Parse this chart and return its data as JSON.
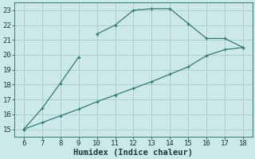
{
  "line1_x": [
    6,
    7,
    8,
    9
  ],
  "line1_y": [
    15,
    16.4,
    18.1,
    19.85
  ],
  "line2_x": [
    10,
    11,
    12,
    13,
    14,
    15,
    16,
    17,
    18
  ],
  "line2_y": [
    21.4,
    22.0,
    23.0,
    23.1,
    23.1,
    22.1,
    21.1,
    21.1,
    20.5
  ],
  "line3_x": [
    6,
    7,
    8,
    9,
    10,
    11,
    12,
    13,
    14,
    15,
    16,
    17,
    18
  ],
  "line3_y": [
    15.0,
    15.45,
    15.9,
    16.35,
    16.85,
    17.3,
    17.75,
    18.2,
    18.7,
    19.2,
    19.95,
    20.35,
    20.5
  ],
  "line_color": "#2d7d72",
  "bg_color": "#cde8e8",
  "grid_color": "#aacfcf",
  "xlabel": "Humidex (Indice chaleur)",
  "xlim": [
    5.5,
    18.5
  ],
  "ylim": [
    14.5,
    23.5
  ],
  "xticks": [
    6,
    7,
    8,
    9,
    10,
    11,
    12,
    13,
    14,
    15,
    16,
    17,
    18
  ],
  "yticks": [
    15,
    16,
    17,
    18,
    19,
    20,
    21,
    22,
    23
  ],
  "font_color": "#1a3a3a",
  "xlabel_fontsize": 7.5,
  "tick_fontsize": 6.5
}
